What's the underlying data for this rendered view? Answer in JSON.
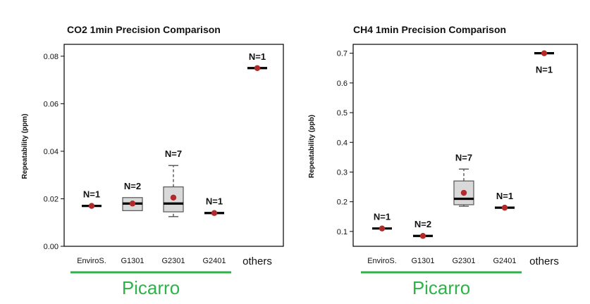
{
  "chart_data": [
    {
      "type": "box",
      "title": "CO2 1min Precision Comparison",
      "ylabel": "Repeatability (ppm)",
      "ylim": [
        0,
        0.085
      ],
      "yticks": [
        "0.00",
        "0.02",
        "0.04",
        "0.06",
        "0.08"
      ],
      "categories": [
        "EnviroS.",
        "G1301",
        "G2301",
        "G2401",
        "others"
      ],
      "boxes": [
        {
          "category": "EnviroS.",
          "n_label": "N=1",
          "median": 0.017,
          "mean": 0.017
        },
        {
          "category": "G1301",
          "n_label": "N=2",
          "q1": 0.015,
          "q3": 0.0205,
          "median": 0.018,
          "mean": 0.018
        },
        {
          "category": "G2301",
          "n_label": "N=7",
          "whisker_low": 0.0125,
          "q1": 0.0145,
          "median": 0.018,
          "q3": 0.025,
          "whisker_high": 0.034,
          "mean": 0.0205
        },
        {
          "category": "G2401",
          "n_label": "N=1",
          "median": 0.014,
          "mean": 0.014
        },
        {
          "category": "others",
          "n_label": "N=1",
          "median": 0.075,
          "mean": 0.075
        }
      ],
      "group_label": "Picarro",
      "group_span": [
        "EnviroS.",
        "G2401"
      ],
      "grid": false
    },
    {
      "type": "box",
      "title": "CH4 1min Precision Comparison",
      "ylabel": "Repeatability (ppb)",
      "ylim": [
        0.05,
        0.73
      ],
      "yticks": [
        "0.1",
        "0.2",
        "0.3",
        "0.4",
        "0.5",
        "0.6",
        "0.7"
      ],
      "categories": [
        "EnviroS.",
        "G1301",
        "G2301",
        "G2401",
        "others"
      ],
      "boxes": [
        {
          "category": "EnviroS.",
          "n_label": "N=1",
          "median": 0.11,
          "mean": 0.11
        },
        {
          "category": "G1301",
          "n_label": "N=2",
          "median": 0.085,
          "mean": 0.085
        },
        {
          "category": "G2301",
          "n_label": "N=7",
          "whisker_low": 0.185,
          "q1": 0.19,
          "median": 0.21,
          "q3": 0.27,
          "whisker_high": 0.31,
          "mean": 0.23
        },
        {
          "category": "G2401",
          "n_label": "N=1",
          "median": 0.18,
          "mean": 0.18
        },
        {
          "category": "others",
          "n_label": "N=1",
          "median": 0.7,
          "mean": 0.7
        }
      ],
      "group_label": "Picarro",
      "group_span": [
        "EnviroS.",
        "G2401"
      ],
      "grid": false
    }
  ],
  "colors": {
    "mean_dot": "#b22a2a",
    "box_fill": "#d9d9d9",
    "group_line": "#2db34a",
    "group_text": "#2db34a"
  }
}
